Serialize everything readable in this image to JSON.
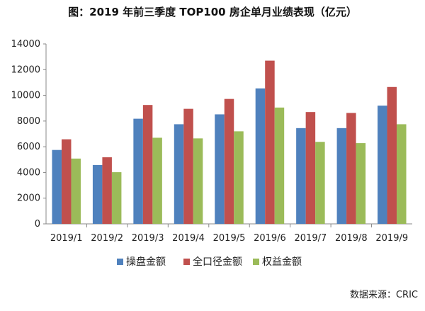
{
  "chart_data": {
    "type": "bar",
    "title": "图：2019 年前三季度 TOP100 房企单月业绩表现（亿元）",
    "categories": [
      "2019/1",
      "2019/2",
      "2019/3",
      "2019/4",
      "2019/5",
      "2019/6",
      "2019/7",
      "2019/8",
      "2019/9"
    ],
    "series": [
      {
        "name": "操盘金额",
        "color": "#4f81bd",
        "values": [
          5750,
          4580,
          8180,
          7750,
          8520,
          10540,
          7450,
          7450,
          9200
        ]
      },
      {
        "name": "全口径金额",
        "color": "#c0504d",
        "values": [
          6580,
          5180,
          9250,
          8950,
          9720,
          12700,
          8700,
          8630,
          10650
        ]
      },
      {
        "name": "权益金额",
        "color": "#9bbb59",
        "values": [
          5080,
          4020,
          6700,
          6650,
          7200,
          9050,
          6380,
          6280,
          7750
        ]
      }
    ],
    "ylim": [
      0,
      14000
    ],
    "yticks": [
      0,
      2000,
      4000,
      6000,
      8000,
      10000,
      12000,
      14000
    ],
    "xlabel": "",
    "ylabel": "",
    "grid": false,
    "legend": "bottom"
  },
  "source": "数据来源：CRIC"
}
